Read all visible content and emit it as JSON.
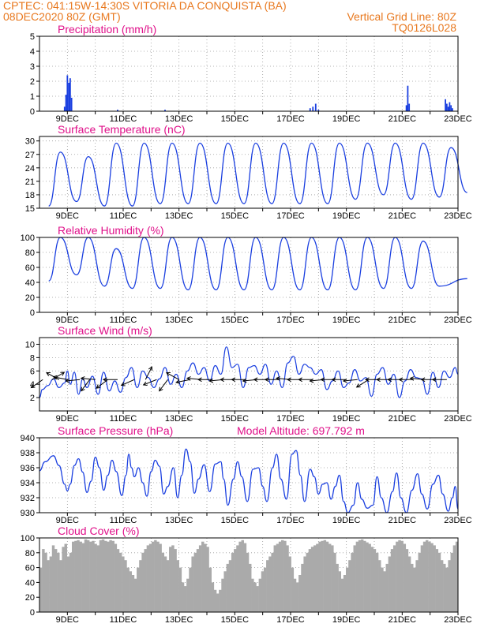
{
  "header": {
    "line1_left": "CPTEC:   041:15W-14:30S   VITORIA DA CONQUISTA (BA)",
    "line2_left": "08DEC2020 80Z (GMT)",
    "line2_right": "Vertical Grid Line: 80Z",
    "line3_right": "TQ0126L028"
  },
  "x_axis": {
    "tick_labels": [
      "9DEC",
      "11DEC",
      "13DEC",
      "15DEC",
      "17DEC",
      "19DEC",
      "21DEC",
      "23DEC"
    ],
    "tick_days": [
      9,
      11,
      13,
      15,
      17,
      19,
      21,
      23
    ],
    "grid_days": [
      9,
      10,
      11,
      12,
      13,
      14,
      15,
      16,
      17,
      18,
      19,
      20,
      21,
      22,
      23
    ]
  },
  "colors": {
    "header": "#e8781e",
    "title": "#e0118a",
    "series": "#1a3fe0",
    "bars": "#1a3fe0",
    "cloud": "#aaaaaa",
    "arrow": "#000000"
  },
  "chart_data": [
    {
      "type": "bar",
      "title": "Precipitation (mm/h)",
      "x_range_days": [
        8.0,
        23.0
      ],
      "ylim": [
        0,
        5
      ],
      "yticks": [
        "0",
        "1",
        "2",
        "3",
        "4",
        "5"
      ],
      "x_day": [
        8.9,
        8.95,
        9.0,
        9.05,
        9.1,
        9.15,
        10.8,
        12.5,
        17.7,
        17.8,
        17.9,
        18.0,
        21.15,
        21.2,
        21.25,
        22.55,
        22.6,
        22.65,
        22.7,
        22.75,
        22.8
      ],
      "values": [
        0.3,
        1.1,
        2.4,
        1.9,
        2.2,
        0.9,
        0.1,
        0.1,
        0.2,
        0.3,
        0.5,
        0.1,
        0.4,
        1.7,
        0.5,
        0.8,
        0.5,
        0.3,
        0.6,
        0.4,
        0.2
      ]
    },
    {
      "type": "line",
      "title": "Surface Temperature (nC)",
      "x_range_days": [
        8.0,
        23.0
      ],
      "ylim": [
        15,
        31
      ],
      "yticks": [
        "15",
        "18",
        "21",
        "24",
        "27",
        "30"
      ],
      "daily_min": [
        15.5,
        16.5,
        15.5,
        15.5,
        16.0,
        16.0,
        16.0,
        16.0,
        16.0,
        16.0,
        16.0,
        17.0,
        18.0,
        17.0,
        17.5,
        18.5
      ],
      "daily_max": [
        27.5,
        26.5,
        29.5,
        29.5,
        29.5,
        29.5,
        29.5,
        29.5,
        29.5,
        29.5,
        29.5,
        29.5,
        29.5,
        29.5,
        28.5
      ]
    },
    {
      "type": "line",
      "title": "Relative Humidity (%)",
      "x_range_days": [
        8.0,
        23.0
      ],
      "ylim": [
        0,
        100
      ],
      "yticks": [
        "0",
        "20",
        "40",
        "60",
        "80",
        "100"
      ],
      "daily_min": [
        42,
        50,
        35,
        32,
        32,
        30,
        30,
        30,
        30,
        30,
        30,
        30,
        32,
        32,
        35,
        45
      ],
      "daily_max": [
        100,
        100,
        85,
        100,
        100,
        100,
        100,
        100,
        100,
        100,
        100,
        100,
        100,
        95
      ]
    },
    {
      "type": "line",
      "title": "Surface Wind (m/s)",
      "x_range_days": [
        8.0,
        23.0
      ],
      "ylim": [
        0,
        11
      ],
      "yticks": [
        "2",
        "4",
        "6",
        "8",
        "10"
      ],
      "speed": [
        [
          8.0,
          2.0
        ],
        [
          8.1,
          3.2
        ],
        [
          8.3,
          3.8
        ],
        [
          8.5,
          4.8
        ],
        [
          8.7,
          3.5
        ],
        [
          8.9,
          4.2
        ],
        [
          9.0,
          6.0
        ],
        [
          9.1,
          4.0
        ],
        [
          9.25,
          5.8
        ],
        [
          9.4,
          2.5
        ],
        [
          9.55,
          4.8
        ],
        [
          9.7,
          3.5
        ],
        [
          9.9,
          5.2
        ],
        [
          10.1,
          2.5
        ],
        [
          10.3,
          5.8
        ],
        [
          10.5,
          3.0
        ],
        [
          10.7,
          4.5
        ],
        [
          10.9,
          2.8
        ],
        [
          11.1,
          5.0
        ],
        [
          11.3,
          6.5
        ],
        [
          11.5,
          3.5
        ],
        [
          11.7,
          6.0
        ],
        [
          11.9,
          5.0
        ],
        [
          12.1,
          3.5
        ],
        [
          12.3,
          4.8
        ],
        [
          12.5,
          6.5
        ],
        [
          12.7,
          4.0
        ],
        [
          12.9,
          5.5
        ],
        [
          13.1,
          3.5
        ],
        [
          13.3,
          6.0
        ],
        [
          13.5,
          7.2
        ],
        [
          13.7,
          5.5
        ],
        [
          13.9,
          6.5
        ],
        [
          14.1,
          4.5
        ],
        [
          14.3,
          6.8
        ],
        [
          14.5,
          5.5
        ],
        [
          14.7,
          9.6
        ],
        [
          14.9,
          6.5
        ],
        [
          15.1,
          7.0
        ],
        [
          15.3,
          3.5
        ],
        [
          15.5,
          6.5
        ],
        [
          15.7,
          6.8
        ],
        [
          15.9,
          5.5
        ],
        [
          16.1,
          7.0
        ],
        [
          16.3,
          4.0
        ],
        [
          16.5,
          6.0
        ],
        [
          16.7,
          3.5
        ],
        [
          16.9,
          7.2
        ],
        [
          17.1,
          8.2
        ],
        [
          17.3,
          5.5
        ],
        [
          17.5,
          7.0
        ],
        [
          17.7,
          6.5
        ],
        [
          17.9,
          5.5
        ],
        [
          18.1,
          6.2
        ],
        [
          18.3,
          3.2
        ],
        [
          18.5,
          4.5
        ],
        [
          18.7,
          6.0
        ],
        [
          18.9,
          3.5
        ],
        [
          19.1,
          4.2
        ],
        [
          19.3,
          6.2
        ],
        [
          19.5,
          4.5
        ],
        [
          19.7,
          5.0
        ],
        [
          19.9,
          2.2
        ],
        [
          20.1,
          5.5
        ],
        [
          20.3,
          6.5
        ],
        [
          20.5,
          4.0
        ],
        [
          20.7,
          5.5
        ],
        [
          20.9,
          2.0
        ],
        [
          21.1,
          4.5
        ],
        [
          21.3,
          6.2
        ],
        [
          21.5,
          5.0
        ],
        [
          21.7,
          4.8
        ],
        [
          21.9,
          2.5
        ],
        [
          22.1,
          5.8
        ],
        [
          22.3,
          3.5
        ],
        [
          22.5,
          6.0
        ],
        [
          22.7,
          5.0
        ],
        [
          22.9,
          6.5
        ],
        [
          23.0,
          5.5
        ]
      ],
      "vectors": [
        [
          8.12,
          -1.0,
          -0.7
        ],
        [
          8.45,
          1.0,
          0.6
        ],
        [
          8.7,
          -0.9,
          0.5
        ],
        [
          9.0,
          -1.0,
          0.2
        ],
        [
          9.45,
          -1.0,
          -0.1
        ],
        [
          9.8,
          -0.6,
          -0.8
        ],
        [
          10.0,
          -1.0,
          0.1
        ],
        [
          10.45,
          -0.8,
          -0.6
        ],
        [
          10.8,
          -1.0,
          0.0
        ],
        [
          11.4,
          -0.9,
          -0.4
        ],
        [
          11.8,
          0.5,
          1.0
        ],
        [
          12.2,
          -1.0,
          -0.4
        ],
        [
          12.6,
          -0.6,
          -0.8
        ],
        [
          13.0,
          -0.9,
          0.5
        ],
        [
          13.4,
          -1.0,
          -0.2
        ],
        [
          13.8,
          -1.0,
          0.1
        ],
        [
          14.2,
          -1.0,
          0.0
        ],
        [
          14.6,
          -1.0,
          -0.1
        ],
        [
          15.0,
          -1.0,
          0.0
        ],
        [
          15.4,
          -1.0,
          0.0
        ],
        [
          15.8,
          -1.0,
          -0.1
        ],
        [
          16.2,
          -1.0,
          0.0
        ],
        [
          16.6,
          -1.0,
          0.0
        ],
        [
          17.0,
          -1.0,
          0.1
        ],
        [
          17.4,
          -1.0,
          0.0
        ],
        [
          17.8,
          -1.0,
          0.0
        ],
        [
          18.2,
          -1.0,
          -0.1
        ],
        [
          18.6,
          -1.0,
          0.0
        ],
        [
          19.0,
          -1.0,
          0.0
        ],
        [
          19.4,
          -1.0,
          -0.1
        ],
        [
          19.8,
          -0.8,
          -0.5
        ],
        [
          20.2,
          -1.0,
          0.0
        ],
        [
          20.6,
          -1.0,
          0.0
        ],
        [
          21.0,
          -1.0,
          0.0
        ],
        [
          21.4,
          -1.0,
          0.0
        ],
        [
          21.8,
          -1.0,
          0.1
        ],
        [
          22.2,
          -1.0,
          0.0
        ],
        [
          22.6,
          -1.0,
          0.0
        ]
      ]
    },
    {
      "type": "line",
      "title": "Surface Pressure (hPa)",
      "subtitle": "Model Altitude: 697.792  m",
      "x_range_days": [
        8.0,
        23.0
      ],
      "ylim": [
        930,
        940
      ],
      "yticks": [
        "930",
        "932",
        "934",
        "936",
        "938",
        "940"
      ],
      "points": [
        [
          8.0,
          935.6
        ],
        [
          8.2,
          936.8
        ],
        [
          8.5,
          937.6
        ],
        [
          8.7,
          936.3
        ],
        [
          8.9,
          933.8
        ],
        [
          9.0,
          932.9
        ],
        [
          9.1,
          933.8
        ],
        [
          9.25,
          936.3
        ],
        [
          9.4,
          937.2
        ],
        [
          9.55,
          935.4
        ],
        [
          9.7,
          932.7
        ],
        [
          9.85,
          934.2
        ],
        [
          10.0,
          937.4
        ],
        [
          10.15,
          936.0
        ],
        [
          10.3,
          933.0
        ],
        [
          10.45,
          935.0
        ],
        [
          10.6,
          937.0
        ],
        [
          10.75,
          935.5
        ],
        [
          10.95,
          932.3
        ],
        [
          11.1,
          935.0
        ],
        [
          11.2,
          937.8
        ],
        [
          11.3,
          936.0
        ],
        [
          11.4,
          934.8
        ],
        [
          11.55,
          936.0
        ],
        [
          11.7,
          934.0
        ],
        [
          11.85,
          932.2
        ],
        [
          12.0,
          935.5
        ],
        [
          12.15,
          937.0
        ],
        [
          12.3,
          936.2
        ],
        [
          12.45,
          932.5
        ],
        [
          12.6,
          933.5
        ],
        [
          12.8,
          936.0
        ],
        [
          12.95,
          932.0
        ],
        [
          13.1,
          935.0
        ],
        [
          13.25,
          938.5
        ],
        [
          13.4,
          936.8
        ],
        [
          13.55,
          932.6
        ],
        [
          13.7,
          934.5
        ],
        [
          13.9,
          936.4
        ],
        [
          14.1,
          932.8
        ],
        [
          14.3,
          936.5
        ],
        [
          14.5,
          936.8
        ],
        [
          14.6,
          934.5
        ],
        [
          14.75,
          931.0
        ],
        [
          14.95,
          934.5
        ],
        [
          15.1,
          936.8
        ],
        [
          15.25,
          934.8
        ],
        [
          15.45,
          931.5
        ],
        [
          15.65,
          935.8
        ],
        [
          15.85,
          936.0
        ],
        [
          16.0,
          933.5
        ],
        [
          16.15,
          931.5
        ],
        [
          16.35,
          936.0
        ],
        [
          16.5,
          937.8
        ],
        [
          16.65,
          934.5
        ],
        [
          16.85,
          931.8
        ],
        [
          17.05,
          937.8
        ],
        [
          17.2,
          938.3
        ],
        [
          17.35,
          935.0
        ],
        [
          17.5,
          931.5
        ],
        [
          17.7,
          935.8
        ],
        [
          17.85,
          934.8
        ],
        [
          18.0,
          932.5
        ],
        [
          18.15,
          933.8
        ],
        [
          18.3,
          934.0
        ],
        [
          18.45,
          931.8
        ],
        [
          18.6,
          933.5
        ],
        [
          18.75,
          935.0
        ],
        [
          18.9,
          931.5
        ],
        [
          19.05,
          930.0
        ],
        [
          19.25,
          931.0
        ],
        [
          19.4,
          934.0
        ],
        [
          19.55,
          931.8
        ],
        [
          19.75,
          930.6
        ],
        [
          19.95,
          931.0
        ],
        [
          20.1,
          934.8
        ],
        [
          20.25,
          932.0
        ],
        [
          20.45,
          930.0
        ],
        [
          20.65,
          932.8
        ],
        [
          20.8,
          935.3
        ],
        [
          20.95,
          932.0
        ],
        [
          21.15,
          930.0
        ],
        [
          21.35,
          933.0
        ],
        [
          21.55,
          935.2
        ],
        [
          21.7,
          932.5
        ],
        [
          21.9,
          930.5
        ],
        [
          22.1,
          933.8
        ],
        [
          22.3,
          935.0
        ],
        [
          22.45,
          932.5
        ],
        [
          22.65,
          930.2
        ],
        [
          22.8,
          932.0
        ],
        [
          22.9,
          933.5
        ],
        [
          23.0,
          930.5
        ]
      ]
    },
    {
      "type": "bar",
      "title": "Cloud Cover (%)",
      "x_range_days": [
        8.0,
        23.0
      ],
      "ylim": [
        0,
        100
      ],
      "yticks": [
        "0",
        "20",
        "40",
        "60",
        "80",
        "100"
      ],
      "values": [
        60,
        85,
        80,
        70,
        75,
        90,
        85,
        80,
        70,
        88,
        92,
        75,
        80,
        95,
        96,
        97,
        95,
        93,
        98,
        97,
        95,
        96,
        92,
        90,
        97,
        98,
        96,
        95,
        97,
        96,
        92,
        85,
        80,
        75,
        70,
        60,
        55,
        50,
        45,
        60,
        70,
        80,
        85,
        90,
        92,
        95,
        97,
        95,
        92,
        80,
        75,
        70,
        88,
        90,
        85,
        70,
        60,
        40,
        35,
        45,
        60,
        75,
        80,
        85,
        90,
        95,
        92,
        88,
        60,
        40,
        30,
        25,
        30,
        45,
        55,
        65,
        70,
        80,
        85,
        90,
        95,
        97,
        93,
        80,
        65,
        45,
        40,
        35,
        45,
        55,
        60,
        70,
        75,
        80,
        90,
        92,
        95,
        97,
        96,
        90,
        75,
        60,
        45,
        40,
        50,
        65,
        75,
        80,
        85,
        88,
        90,
        92,
        95,
        96,
        97,
        95,
        92,
        90,
        80,
        65,
        55,
        45,
        50,
        60,
        70,
        80,
        90,
        95,
        97,
        98,
        96,
        94,
        92,
        88,
        85,
        80,
        70,
        60,
        55,
        65,
        75,
        85,
        90,
        95,
        97,
        96,
        92,
        85,
        75,
        65,
        60,
        70,
        80,
        90,
        95,
        97,
        95,
        93,
        90,
        85,
        80,
        70,
        65,
        60,
        70,
        80,
        90,
        95
      ]
    }
  ]
}
